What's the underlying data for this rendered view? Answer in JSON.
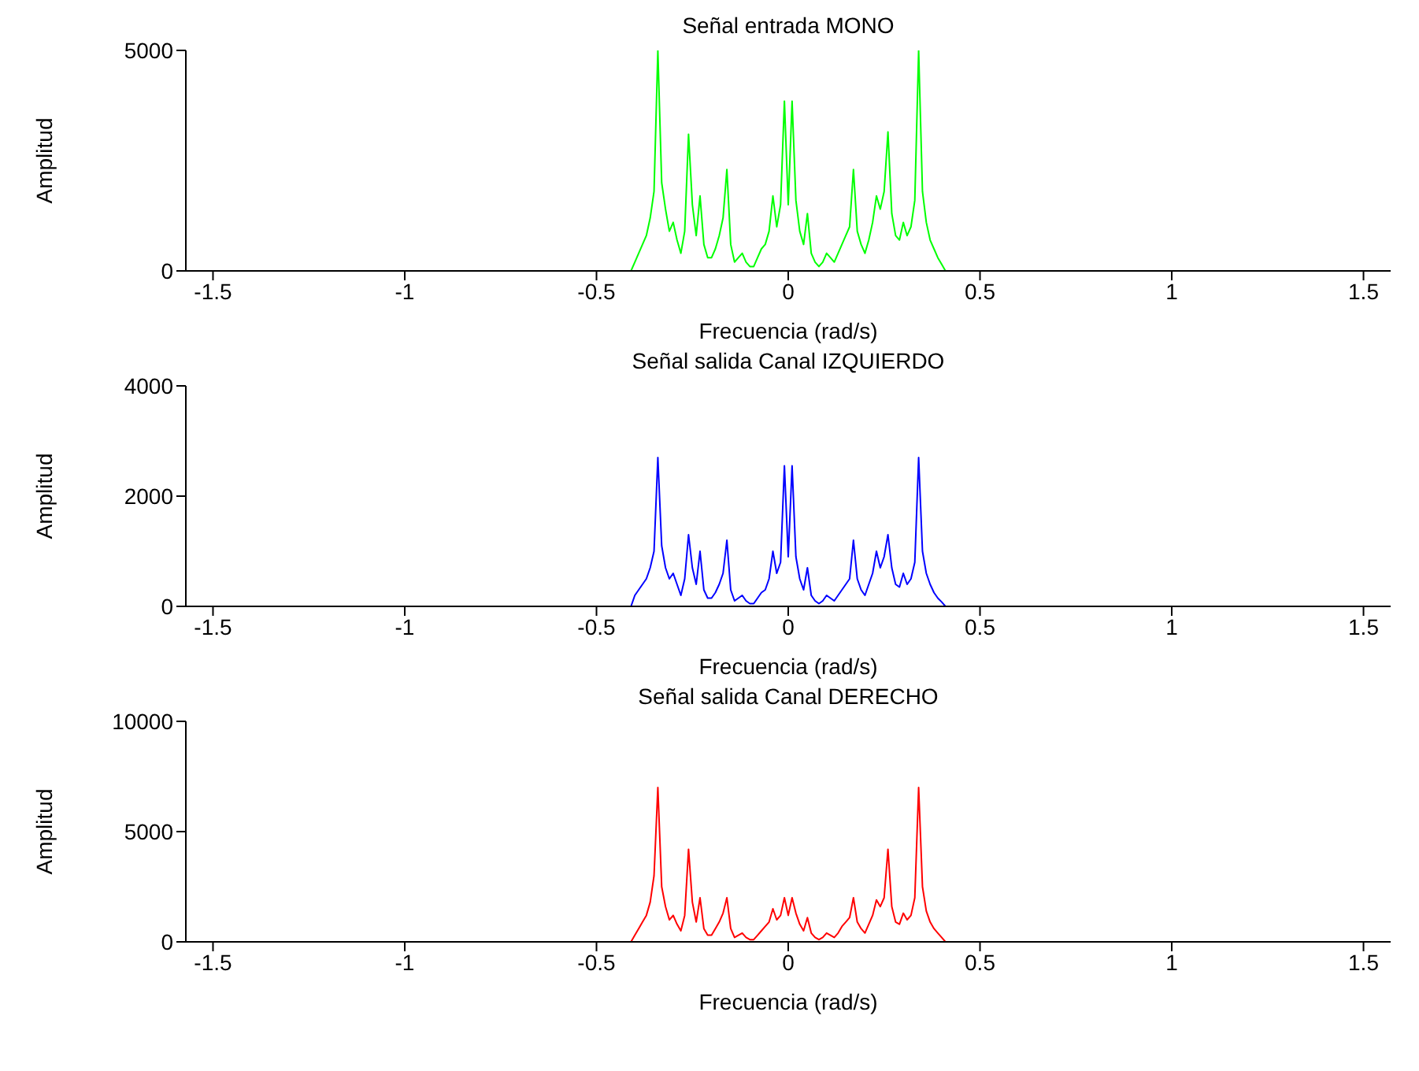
{
  "chart_data": [
    {
      "type": "line",
      "title": "Señal entrada MONO",
      "xlabel": "Frecuencia (rad/s)",
      "ylabel": "Amplitud",
      "xlim": [
        -1.5708,
        1.5708
      ],
      "xticks": [
        -1.5,
        -1,
        -0.5,
        0,
        0.5,
        1,
        1.5
      ],
      "ylim": [
        0,
        5000
      ],
      "yticks": [
        0,
        5000
      ],
      "x": [
        -1.5708,
        -0.41,
        -0.4,
        -0.39,
        -0.38,
        -0.37,
        -0.36,
        -0.35,
        -0.34,
        -0.33,
        -0.32,
        -0.31,
        -0.3,
        -0.29,
        -0.28,
        -0.27,
        -0.26,
        -0.25,
        -0.24,
        -0.23,
        -0.22,
        -0.21,
        -0.2,
        -0.19,
        -0.18,
        -0.17,
        -0.16,
        -0.15,
        -0.14,
        -0.13,
        -0.12,
        -0.11,
        -0.1,
        -0.09,
        -0.08,
        -0.07,
        -0.06,
        -0.05,
        -0.04,
        -0.03,
        -0.02,
        -0.01,
        0,
        0.01,
        0.02,
        0.03,
        0.04,
        0.05,
        0.06,
        0.07,
        0.08,
        0.09,
        0.1,
        0.11,
        0.12,
        0.13,
        0.14,
        0.15,
        0.16,
        0.17,
        0.18,
        0.19,
        0.2,
        0.21,
        0.22,
        0.23,
        0.24,
        0.25,
        0.26,
        0.27,
        0.28,
        0.29,
        0.3,
        0.31,
        0.32,
        0.33,
        0.34,
        0.35,
        0.36,
        0.37,
        0.38,
        0.39,
        0.4,
        0.41,
        1.5708
      ],
      "series": [
        {
          "color": "#00ff00",
          "values": [
            0,
            0,
            200,
            400,
            600,
            800,
            1200,
            1800,
            5000,
            2000,
            1400,
            900,
            1100,
            700,
            400,
            900,
            3100,
            1500,
            800,
            1700,
            600,
            300,
            300,
            500,
            800,
            1200,
            2300,
            600,
            200,
            300,
            400,
            200,
            100,
            100,
            300,
            500,
            600,
            900,
            1700,
            1000,
            1500,
            3850,
            1500,
            3850,
            1600,
            900,
            600,
            1300,
            400,
            200,
            100,
            200,
            400,
            300,
            200,
            400,
            600,
            800,
            1000,
            2300,
            900,
            600,
            400,
            700,
            1100,
            1700,
            1400,
            1800,
            3150,
            1300,
            800,
            700,
            1100,
            800,
            1000,
            1600,
            5000,
            1800,
            1100,
            700,
            500,
            300,
            150,
            0,
            0
          ]
        }
      ]
    },
    {
      "type": "line",
      "title": "Señal salida Canal IZQUIERDO",
      "xlabel": "Frecuencia (rad/s)",
      "ylabel": "Amplitud",
      "xlim": [
        -1.5708,
        1.5708
      ],
      "xticks": [
        -1.5,
        -1,
        -0.5,
        0,
        0.5,
        1,
        1.5
      ],
      "ylim": [
        0,
        4000
      ],
      "yticks": [
        0,
        2000,
        4000
      ],
      "x": [
        -1.5708,
        -0.41,
        -0.4,
        -0.39,
        -0.38,
        -0.37,
        -0.36,
        -0.35,
        -0.34,
        -0.33,
        -0.32,
        -0.31,
        -0.3,
        -0.29,
        -0.28,
        -0.27,
        -0.26,
        -0.25,
        -0.24,
        -0.23,
        -0.22,
        -0.21,
        -0.2,
        -0.19,
        -0.18,
        -0.17,
        -0.16,
        -0.15,
        -0.14,
        -0.13,
        -0.12,
        -0.11,
        -0.1,
        -0.09,
        -0.08,
        -0.07,
        -0.06,
        -0.05,
        -0.04,
        -0.03,
        -0.02,
        -0.01,
        0,
        0.01,
        0.02,
        0.03,
        0.04,
        0.05,
        0.06,
        0.07,
        0.08,
        0.09,
        0.1,
        0.11,
        0.12,
        0.13,
        0.14,
        0.15,
        0.16,
        0.17,
        0.18,
        0.19,
        0.2,
        0.21,
        0.22,
        0.23,
        0.24,
        0.25,
        0.26,
        0.27,
        0.28,
        0.29,
        0.3,
        0.31,
        0.32,
        0.33,
        0.34,
        0.35,
        0.36,
        0.37,
        0.38,
        0.39,
        0.4,
        0.41,
        1.5708
      ],
      "series": [
        {
          "color": "#0000ff",
          "values": [
            0,
            0,
            200,
            300,
            400,
            500,
            700,
            1000,
            2700,
            1100,
            700,
            500,
            600,
            400,
            200,
            500,
            1300,
            700,
            400,
            1000,
            300,
            150,
            150,
            250,
            400,
            600,
            1200,
            300,
            100,
            150,
            200,
            100,
            50,
            50,
            150,
            250,
            300,
            500,
            1000,
            600,
            800,
            2550,
            900,
            2550,
            900,
            500,
            300,
            700,
            200,
            100,
            50,
            100,
            200,
            150,
            100,
            200,
            300,
            400,
            500,
            1200,
            500,
            300,
            200,
            400,
            600,
            1000,
            700,
            900,
            1300,
            700,
            400,
            350,
            600,
            400,
            500,
            800,
            2700,
            1000,
            600,
            400,
            250,
            150,
            80,
            0,
            0
          ]
        }
      ]
    },
    {
      "type": "line",
      "title": "Señal salida Canal DERECHO",
      "xlabel": "Frecuencia (rad/s)",
      "ylabel": "Amplitud",
      "xlim": [
        -1.5708,
        1.5708
      ],
      "xticks": [
        -1.5,
        -1,
        -0.5,
        0,
        0.5,
        1,
        1.5
      ],
      "ylim": [
        0,
        10000
      ],
      "yticks": [
        0,
        5000,
        10000
      ],
      "x": [
        -1.5708,
        -0.41,
        -0.4,
        -0.39,
        -0.38,
        -0.37,
        -0.36,
        -0.35,
        -0.34,
        -0.33,
        -0.32,
        -0.31,
        -0.3,
        -0.29,
        -0.28,
        -0.27,
        -0.26,
        -0.25,
        -0.24,
        -0.23,
        -0.22,
        -0.21,
        -0.2,
        -0.19,
        -0.18,
        -0.17,
        -0.16,
        -0.15,
        -0.14,
        -0.13,
        -0.12,
        -0.11,
        -0.1,
        -0.09,
        -0.08,
        -0.07,
        -0.06,
        -0.05,
        -0.04,
        -0.03,
        -0.02,
        -0.01,
        0,
        0.01,
        0.02,
        0.03,
        0.04,
        0.05,
        0.06,
        0.07,
        0.08,
        0.09,
        0.1,
        0.11,
        0.12,
        0.13,
        0.14,
        0.15,
        0.16,
        0.17,
        0.18,
        0.19,
        0.2,
        0.21,
        0.22,
        0.23,
        0.24,
        0.25,
        0.26,
        0.27,
        0.28,
        0.29,
        0.3,
        0.31,
        0.32,
        0.33,
        0.34,
        0.35,
        0.36,
        0.37,
        0.38,
        0.39,
        0.4,
        0.41,
        1.5708
      ],
      "series": [
        {
          "color": "#ff0000",
          "values": [
            0,
            0,
            300,
            600,
            900,
            1200,
            1800,
            3000,
            7000,
            2500,
            1600,
            1000,
            1200,
            800,
            500,
            1200,
            4200,
            1800,
            900,
            2000,
            600,
            300,
            300,
            600,
            900,
            1300,
            2000,
            600,
            200,
            300,
            400,
            200,
            100,
            100,
            300,
            500,
            700,
            900,
            1500,
            1000,
            1200,
            2000,
            1200,
            2000,
            1300,
            800,
            500,
            1100,
            400,
            200,
            100,
            200,
            400,
            300,
            200,
            400,
            700,
            900,
            1100,
            2000,
            900,
            600,
            400,
            800,
            1200,
            1900,
            1600,
            2000,
            4200,
            1600,
            900,
            800,
            1300,
            1000,
            1200,
            2000,
            7000,
            2500,
            1400,
            900,
            600,
            400,
            200,
            0,
            0
          ]
        }
      ]
    }
  ]
}
